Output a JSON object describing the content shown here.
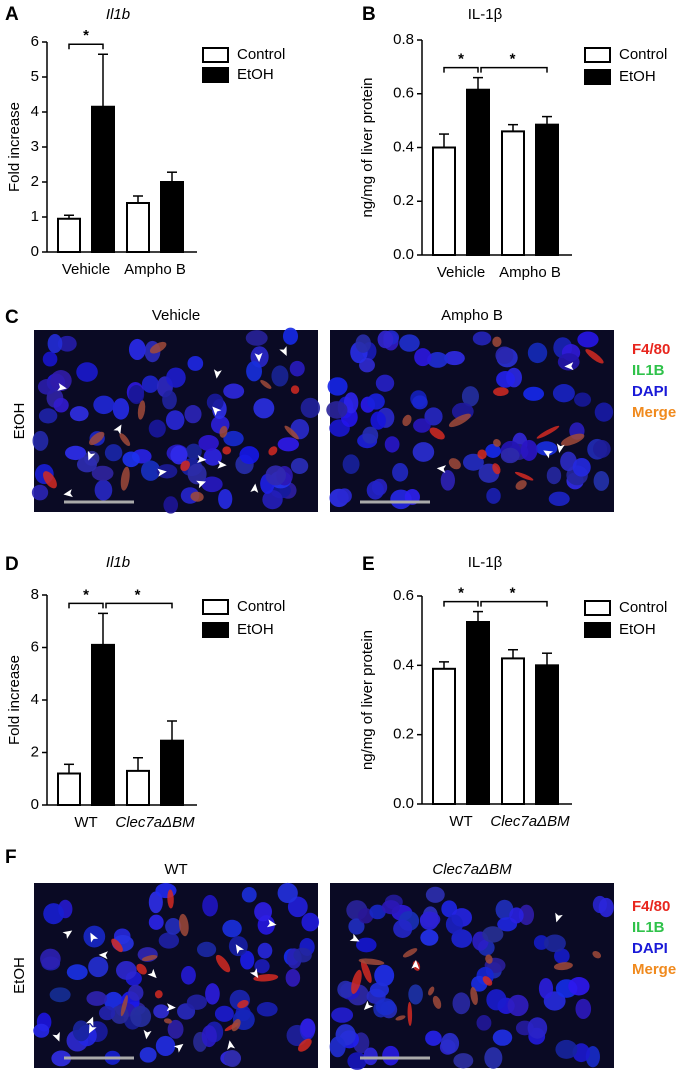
{
  "chart_data": [
    {
      "type": "bar",
      "panel": "A",
      "title": "Il1b",
      "title_italic": true,
      "y_label": "Fold increase",
      "categories": [
        "Vehicle",
        "Ampho B"
      ],
      "series": [
        {
          "name": "Control",
          "color": "#ffffff",
          "values": [
            0.95,
            1.4
          ],
          "errors": [
            0.1,
            0.2
          ]
        },
        {
          "name": "EtOH",
          "color": "#000000",
          "values": [
            4.15,
            2.0
          ],
          "errors": [
            1.5,
            0.28
          ]
        }
      ],
      "ylim": [
        0,
        6
      ],
      "yticks": [
        0,
        1,
        2,
        3,
        4,
        5,
        6
      ],
      "annotations": [
        "*"
      ]
    },
    {
      "type": "bar",
      "panel": "B",
      "title": "IL-1β",
      "title_italic": false,
      "y_label": "ng/mg of liver protein",
      "categories": [
        "Vehicle",
        "Ampho B"
      ],
      "series": [
        {
          "name": "Control",
          "color": "#ffffff",
          "values": [
            0.4,
            0.46
          ],
          "errors": [
            0.05,
            0.025
          ]
        },
        {
          "name": "EtOH",
          "color": "#000000",
          "values": [
            0.615,
            0.485
          ],
          "errors": [
            0.045,
            0.03
          ]
        }
      ],
      "ylim": [
        0,
        0.8
      ],
      "yticks": [
        {
          "value": 0,
          "label": "0.0"
        },
        0.2,
        0.4,
        0.6,
        0.8
      ],
      "annotations": [
        "*",
        "*"
      ]
    },
    {
      "type": "bar",
      "panel": "D",
      "title": "Il1b",
      "title_italic": true,
      "y_label": "Fold increase",
      "categories": [
        "WT",
        "Clec7aΔBM"
      ],
      "series": [
        {
          "name": "Control",
          "color": "#ffffff",
          "values": [
            1.2,
            1.3
          ],
          "errors": [
            0.35,
            0.5
          ]
        },
        {
          "name": "EtOH",
          "color": "#000000",
          "values": [
            6.1,
            2.45
          ],
          "errors": [
            1.2,
            0.75
          ]
        }
      ],
      "ylim": [
        0,
        8
      ],
      "yticks": [
        0,
        2,
        4,
        6,
        8
      ],
      "annotations": [
        "*",
        "*"
      ]
    },
    {
      "type": "bar",
      "panel": "E",
      "title": "IL-1β",
      "title_italic": false,
      "y_label": "ng/mg of liver protein",
      "categories": [
        "WT",
        "Clec7aΔBM"
      ],
      "series": [
        {
          "name": "Control",
          "color": "#ffffff",
          "values": [
            0.39,
            0.42
          ],
          "errors": [
            0.02,
            0.025
          ]
        },
        {
          "name": "EtOH",
          "color": "#000000",
          "values": [
            0.525,
            0.4
          ],
          "errors": [
            0.03,
            0.035
          ]
        }
      ],
      "ylim": [
        0,
        0.6
      ],
      "yticks": [
        {
          "value": 0,
          "label": "0.0"
        },
        0.2,
        0.4,
        0.6
      ],
      "annotations": [
        "*",
        "*"
      ]
    }
  ],
  "micrographs": [
    {
      "panel": "C",
      "row_label": "EtOH",
      "images": [
        "Vehicle",
        "Ampho B"
      ],
      "legend": [
        {
          "label": "F4/80",
          "color": "#e8261e"
        },
        {
          "label": "IL1B",
          "color": "#2fc24a"
        },
        {
          "label": "DAPI",
          "color": "#1a1ad8"
        },
        {
          "label": "Merge",
          "color": "#f08a1e"
        }
      ]
    },
    {
      "panel": "F",
      "row_label": "EtOH",
      "images": [
        "WT",
        "Clec7aΔBM"
      ],
      "legend": [
        {
          "label": "F4/80",
          "color": "#e8261e"
        },
        {
          "label": "IL1B",
          "color": "#2fc24a"
        },
        {
          "label": "DAPI",
          "color": "#1a1ad8"
        },
        {
          "label": "Merge",
          "color": "#f08a1e"
        }
      ]
    }
  ]
}
